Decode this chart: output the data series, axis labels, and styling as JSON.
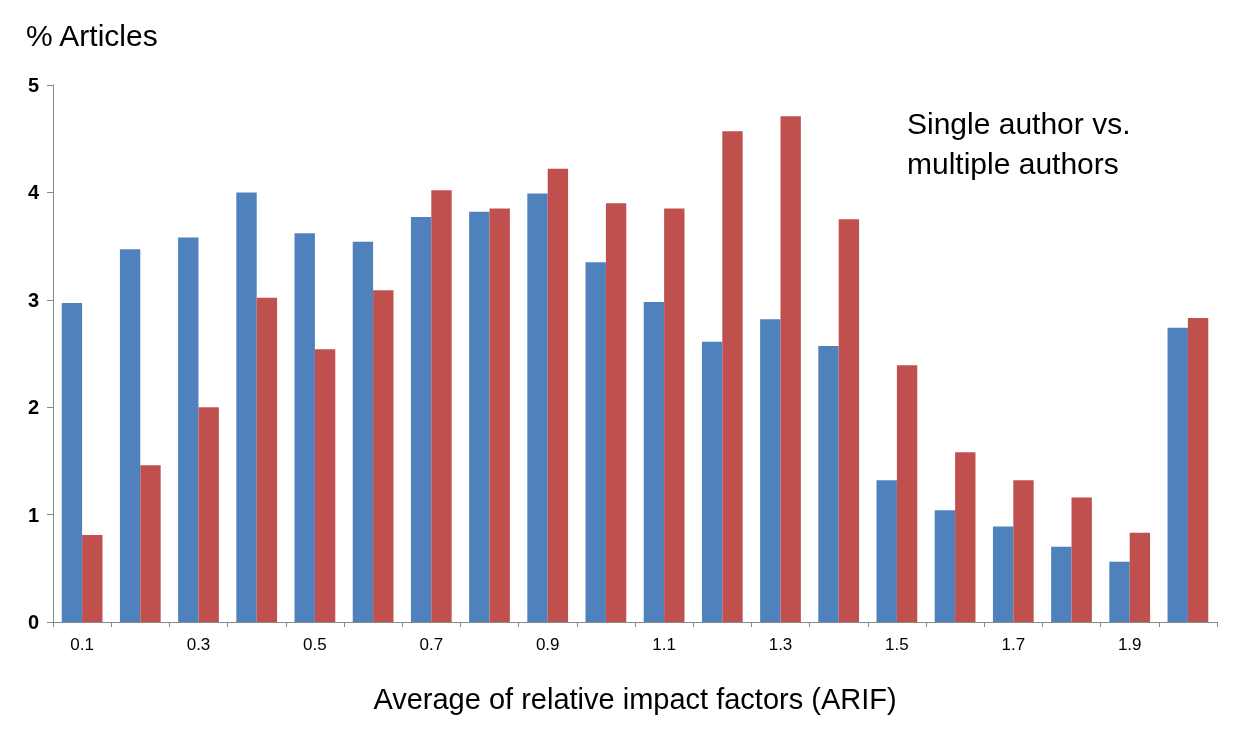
{
  "chart_data": {
    "type": "bar",
    "ylabel": "% Articles",
    "xlabel": "Average of relative impact factors (ARIF)",
    "annotations": [
      "Single author vs. multiple authors"
    ],
    "categories": [
      "0.1",
      null,
      "0.3",
      null,
      "0.5",
      null,
      "0.7",
      null,
      "0.9",
      null,
      "1.1",
      null,
      "1.3",
      null,
      "1.5",
      null,
      "1.7",
      null,
      "1.9",
      null
    ],
    "series": [
      {
        "color": "#4f81bd",
        "values": [
          2.97,
          3.47,
          3.58,
          4.0,
          3.62,
          3.54,
          3.77,
          3.82,
          3.99,
          3.35,
          2.98,
          2.61,
          2.82,
          2.57,
          1.32,
          1.04,
          0.89,
          0.7,
          0.56,
          2.74
        ]
      },
      {
        "color": "#c0504d",
        "values": [
          0.81,
          1.46,
          2.0,
          3.02,
          2.54,
          3.09,
          4.02,
          3.85,
          4.22,
          3.9,
          3.85,
          4.57,
          4.71,
          3.75,
          2.39,
          1.58,
          1.32,
          1.16,
          0.83,
          2.83
        ]
      }
    ],
    "ylim": [
      0,
      5
    ],
    "yticks": [
      0,
      1,
      2,
      3,
      4,
      5
    ],
    "grid": false
  }
}
